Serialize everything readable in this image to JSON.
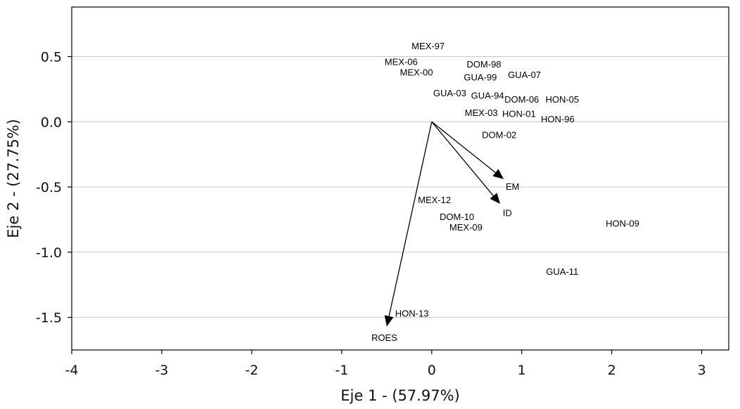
{
  "chart_data": {
    "type": "scatter",
    "title": "",
    "xlabel": "Eje 1 - (57.97%)",
    "ylabel": "Eje 2 - (27.75%)",
    "xlim": [
      -4,
      3.3
    ],
    "ylim": [
      -1.75,
      0.88
    ],
    "xticks": [
      -4,
      -3,
      -2,
      -1,
      0,
      1,
      2,
      3
    ],
    "xtick_labels": [
      "-4",
      "-3",
      "-2",
      "-1",
      "0",
      "1",
      "2",
      "3"
    ],
    "yticks": [
      0.5,
      0.0,
      -0.5,
      -1.0,
      -1.5
    ],
    "ytick_labels": [
      "0.5",
      "0.0",
      "-0.5",
      "-1.0",
      "-1.5"
    ],
    "grid": "horizontal",
    "legend": "none",
    "points": [
      {
        "label": "MEX-97",
        "x": -0.04,
        "y": 0.58
      },
      {
        "label": "MEX-06",
        "x": -0.34,
        "y": 0.46
      },
      {
        "label": "MEX-00",
        "x": -0.17,
        "y": 0.38
      },
      {
        "label": "DOM-98",
        "x": 0.58,
        "y": 0.44
      },
      {
        "label": "GUA-99",
        "x": 0.54,
        "y": 0.34
      },
      {
        "label": "GUA-07",
        "x": 1.03,
        "y": 0.36
      },
      {
        "label": "GUA-03",
        "x": 0.2,
        "y": 0.22
      },
      {
        "label": "GUA-94",
        "x": 0.62,
        "y": 0.2
      },
      {
        "label": "DOM-06",
        "x": 1.0,
        "y": 0.17
      },
      {
        "label": "HON-05",
        "x": 1.45,
        "y": 0.17
      },
      {
        "label": "MEX-03",
        "x": 0.55,
        "y": 0.07
      },
      {
        "label": "HON-01",
        "x": 0.97,
        "y": 0.06
      },
      {
        "label": "HON-96",
        "x": 1.4,
        "y": 0.02
      },
      {
        "label": "DOM-02",
        "x": 0.75,
        "y": -0.1
      },
      {
        "label": "MEX-12",
        "x": 0.03,
        "y": -0.6
      },
      {
        "label": "DOM-10",
        "x": 0.28,
        "y": -0.73
      },
      {
        "label": "MEX-09",
        "x": 0.38,
        "y": -0.81
      },
      {
        "label": "HON-09",
        "x": 2.12,
        "y": -0.78
      },
      {
        "label": "GUA-11",
        "x": 1.45,
        "y": -1.15
      },
      {
        "label": "HON-13",
        "x": -0.22,
        "y": -1.47
      }
    ],
    "vectors": [
      {
        "label": "EM",
        "x": 0.8,
        "y": -0.44
      },
      {
        "label": "ID",
        "x": 0.76,
        "y": -0.63
      },
      {
        "label": "ROES",
        "x": -0.5,
        "y": -1.57
      }
    ],
    "colors": {
      "axis": "#000000",
      "grid": "#c8c8c8",
      "text": "#000000"
    }
  }
}
